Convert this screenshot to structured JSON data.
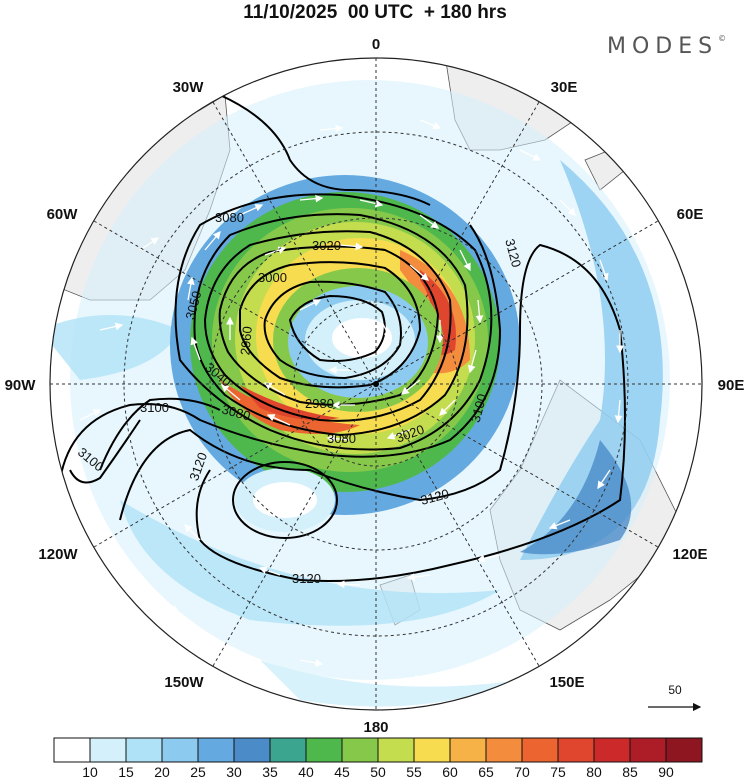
{
  "title": "11/10/2025  00 UTC  + 180 hrs",
  "brand": "MODES",
  "brand_mark": "©",
  "map": {
    "projection": "polar-stereographic-south",
    "longitude_labels": [
      {
        "text": "0",
        "lon": 0
      },
      {
        "text": "30E",
        "lon": 30
      },
      {
        "text": "60E",
        "lon": 60
      },
      {
        "text": "90E",
        "lon": 90
      },
      {
        "text": "120E",
        "lon": 120
      },
      {
        "text": "150E",
        "lon": 150
      },
      {
        "text": "180",
        "lon": 180
      },
      {
        "text": "150W",
        "lon": -150
      },
      {
        "text": "120W",
        "lon": -120
      },
      {
        "text": "90W",
        "lon": -90
      },
      {
        "text": "60W",
        "lon": -60
      },
      {
        "text": "30W",
        "lon": -30
      }
    ],
    "contour_labels": [
      "3080",
      "3020",
      "3000",
      "3050",
      "2960",
      "3040",
      "2980",
      "3080",
      "3080",
      "3020",
      "3100",
      "3120",
      "3100",
      "3120",
      "3120",
      "3120",
      "3100"
    ],
    "vector_reference": {
      "value": "50"
    },
    "colorbar": {
      "colors": [
        "#ffffff",
        "#d4f1fb",
        "#b0e2f7",
        "#8ccaf0",
        "#64a9e0",
        "#4b8cc8",
        "#3ca590",
        "#4fb84d",
        "#86c94a",
        "#c4dd4e",
        "#f7dc4f",
        "#f7b247",
        "#f38c3d",
        "#ec6530",
        "#e0462e",
        "#cc2a2a",
        "#ad1d27",
        "#8e1620"
      ],
      "tick_labels": [
        "10",
        "15",
        "20",
        "25",
        "30",
        "35",
        "40",
        "45",
        "50",
        "55",
        "60",
        "65",
        "70",
        "75",
        "80",
        "85",
        "90"
      ]
    }
  }
}
